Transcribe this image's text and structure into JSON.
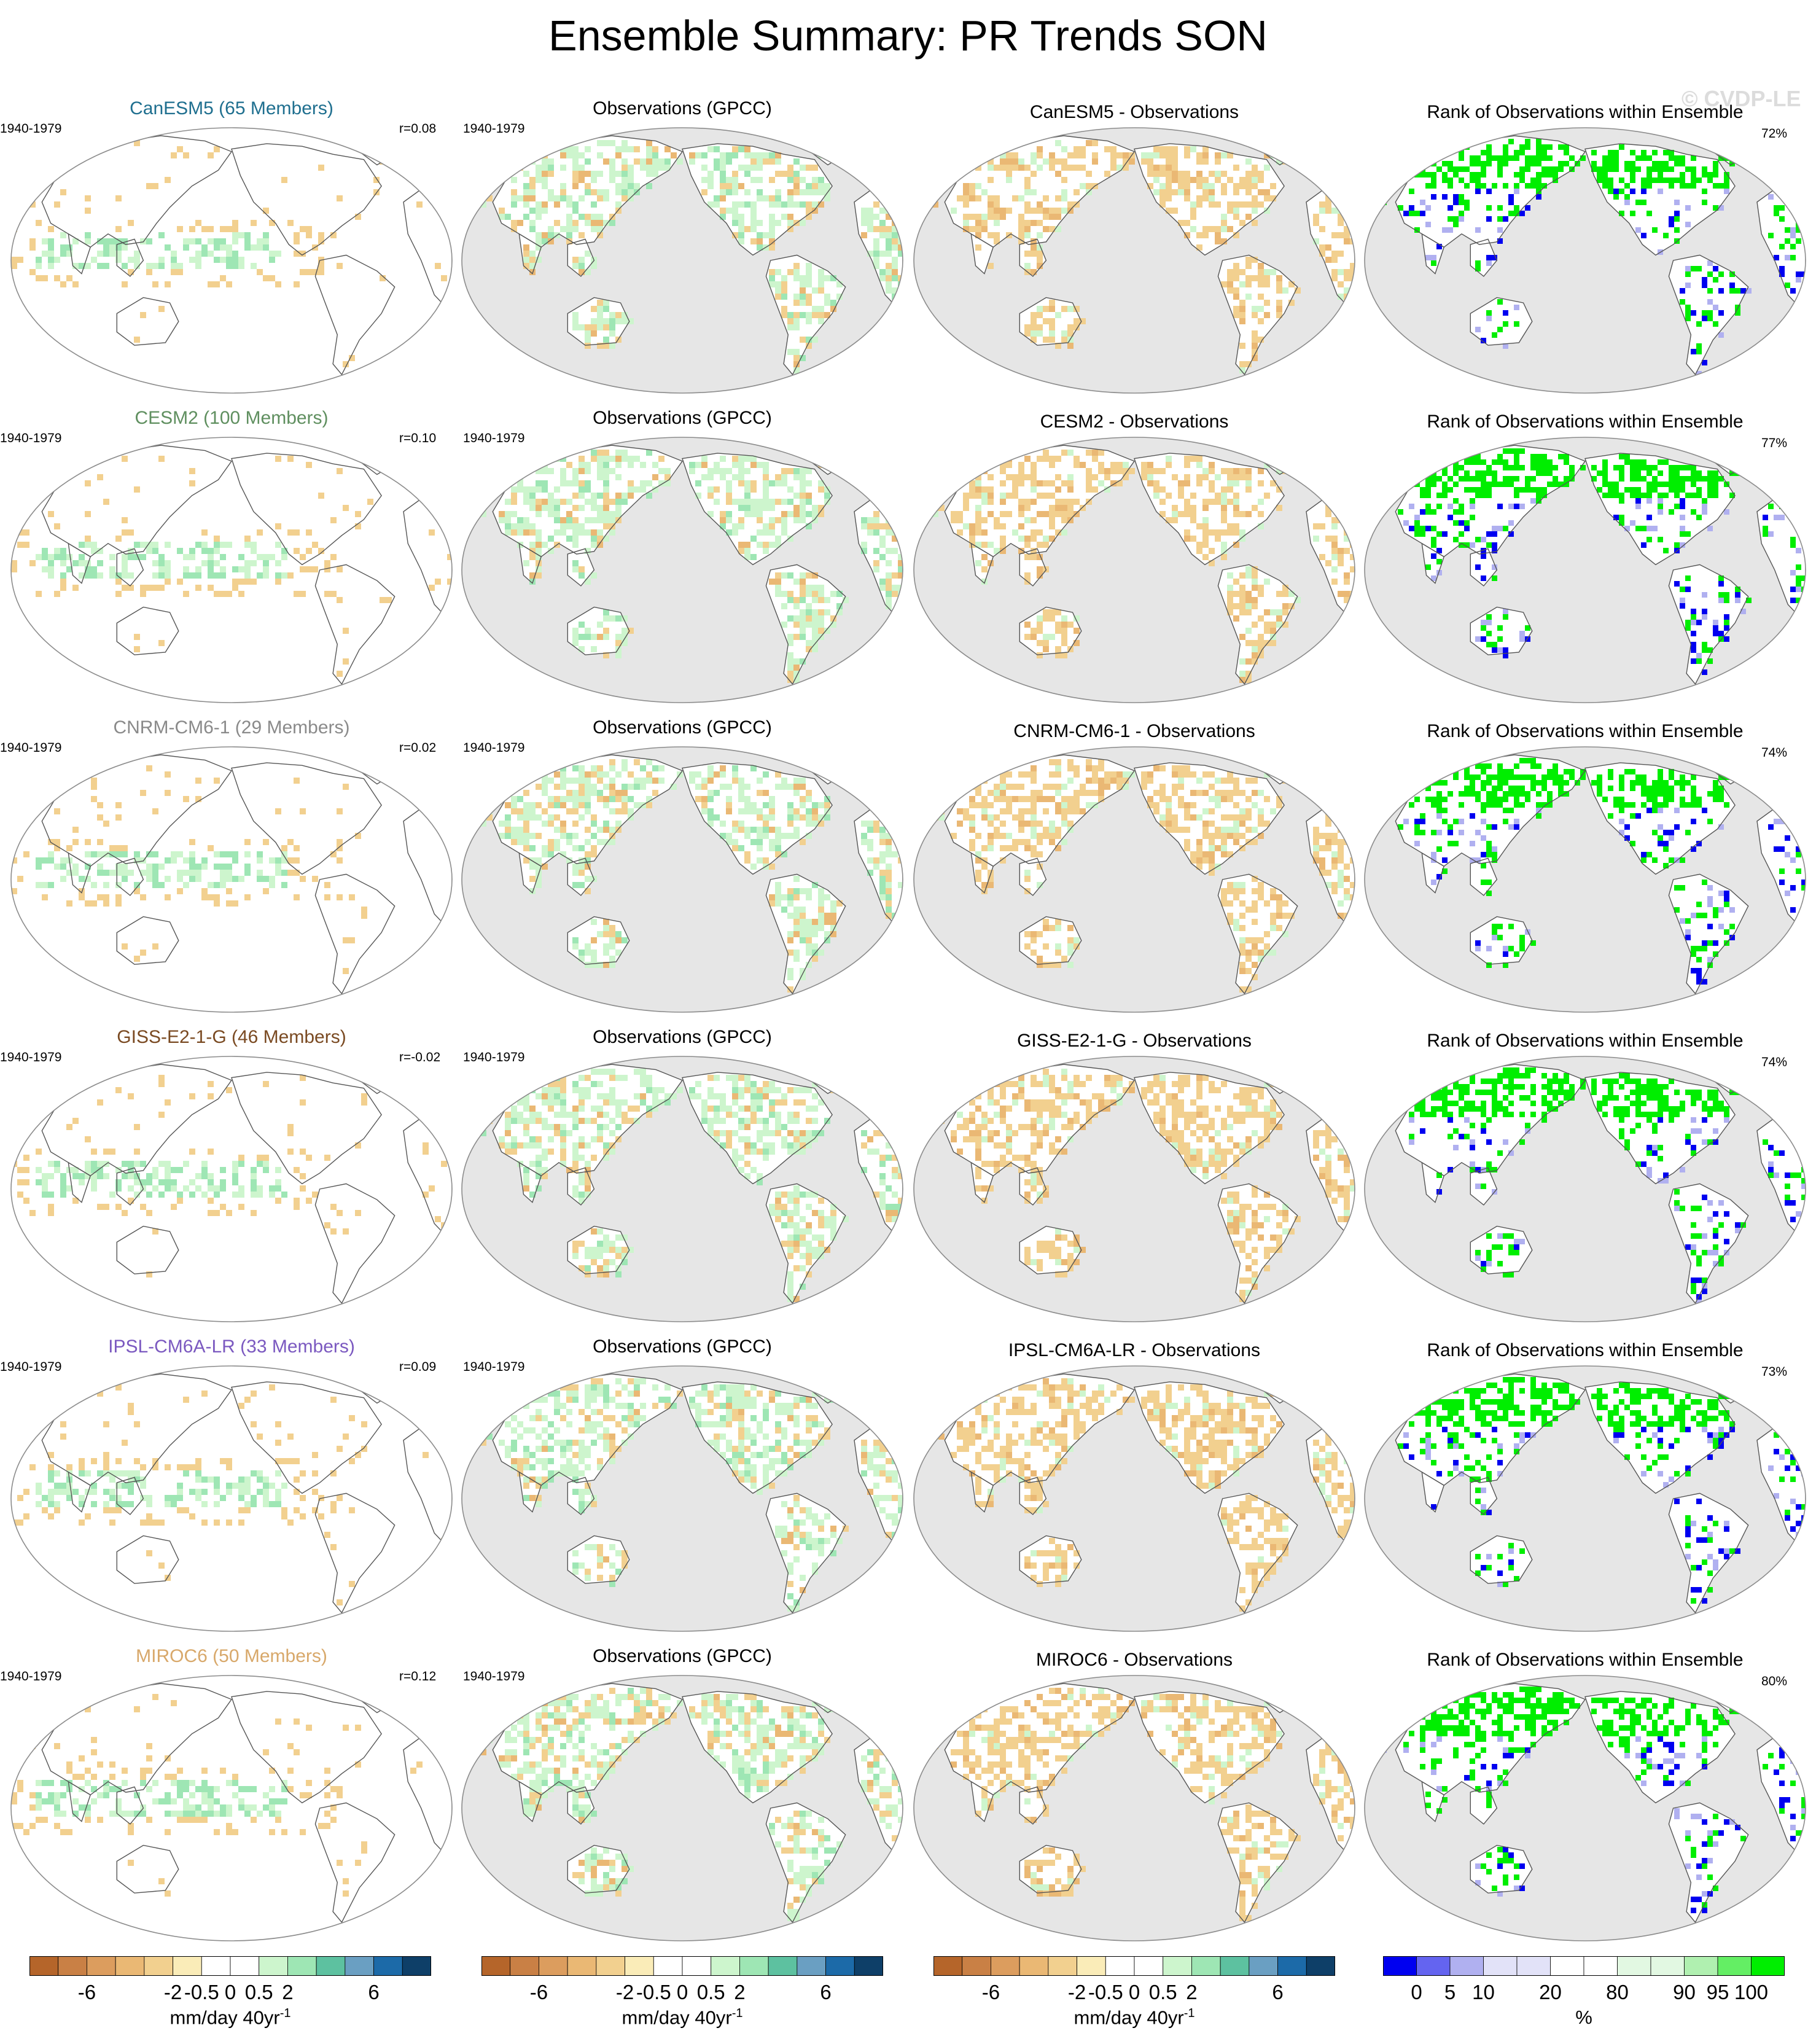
{
  "title": "Ensemble Summary: PR Trends SON",
  "watermark": "© CVDP-LE",
  "period": "1940-1979",
  "obs_title": "Observations (GPCC)",
  "rank_title": "Rank of Observations within Ensemble",
  "rows": [
    {
      "model_title": "CanESM5 (65 Members)",
      "model_color": "#1f6f8f",
      "r": "r=0.08",
      "diff_title": "CanESM5 - Observations",
      "rank_pct": "72%"
    },
    {
      "model_title": "CESM2 (100 Members)",
      "model_color": "#5f8f5f",
      "r": "r=0.10",
      "diff_title": "CESM2 - Observations",
      "rank_pct": "77%"
    },
    {
      "model_title": "CNRM-CM6-1 (29 Members)",
      "model_color": "#8a8a8a",
      "r": "r=0.02",
      "diff_title": "CNRM-CM6-1 - Observations",
      "rank_pct": "74%"
    },
    {
      "model_title": "GISS-E2-1-G (46 Members)",
      "model_color": "#7a4a22",
      "r": "r=-0.02",
      "diff_title": "GISS-E2-1-G - Observations",
      "rank_pct": "74%"
    },
    {
      "model_title": "IPSL-CM6A-LR (33 Members)",
      "model_color": "#7b59c0",
      "r": "r=0.09",
      "diff_title": "IPSL-CM6A-LR - Observations",
      "rank_pct": "73%"
    },
    {
      "model_title": "MIROC6 (50 Members)",
      "model_color": "#d8a86a",
      "r": "r=0.12",
      "diff_title": "MIROC6 - Observations",
      "rank_pct": "80%"
    }
  ],
  "trend_colorbar": {
    "colors": [
      "#b5652a",
      "#c98045",
      "#dc9d5e",
      "#eab874",
      "#f2d08f",
      "#faecb8",
      "#ffffff",
      "#ffffff",
      "#cdf5cd",
      "#9ee6b4",
      "#5dc1a0",
      "#6a9fc2",
      "#1c6aa8",
      "#0e3f68"
    ],
    "tick_labels": [
      "-6",
      "-2",
      "-0.5",
      "0",
      "0.5",
      "2",
      "6"
    ],
    "unit": "mm/day 40yr",
    "unit_sup": "-1"
  },
  "rank_colorbar": {
    "colors": [
      "#0000f0",
      "#6464f0",
      "#b0b0f0",
      "#e2e2f8",
      "#e2e2f8",
      "#ffffff",
      "#ffffff",
      "#e2f8e2",
      "#e2f8e2",
      "#b0f0b0",
      "#64ee64",
      "#00ee00"
    ],
    "tick_labels": [
      "0",
      "5",
      "10",
      "20",
      "80",
      "90",
      "95",
      "100"
    ],
    "unit": "%"
  },
  "legend_colors": {
    "land_mask_gray": "#e6e6e6",
    "dry_tan": "#f2d08f",
    "wet_green": "#cdf5cd",
    "rank_low_blue": "#0000f0",
    "rank_high_green": "#00ee00"
  }
}
